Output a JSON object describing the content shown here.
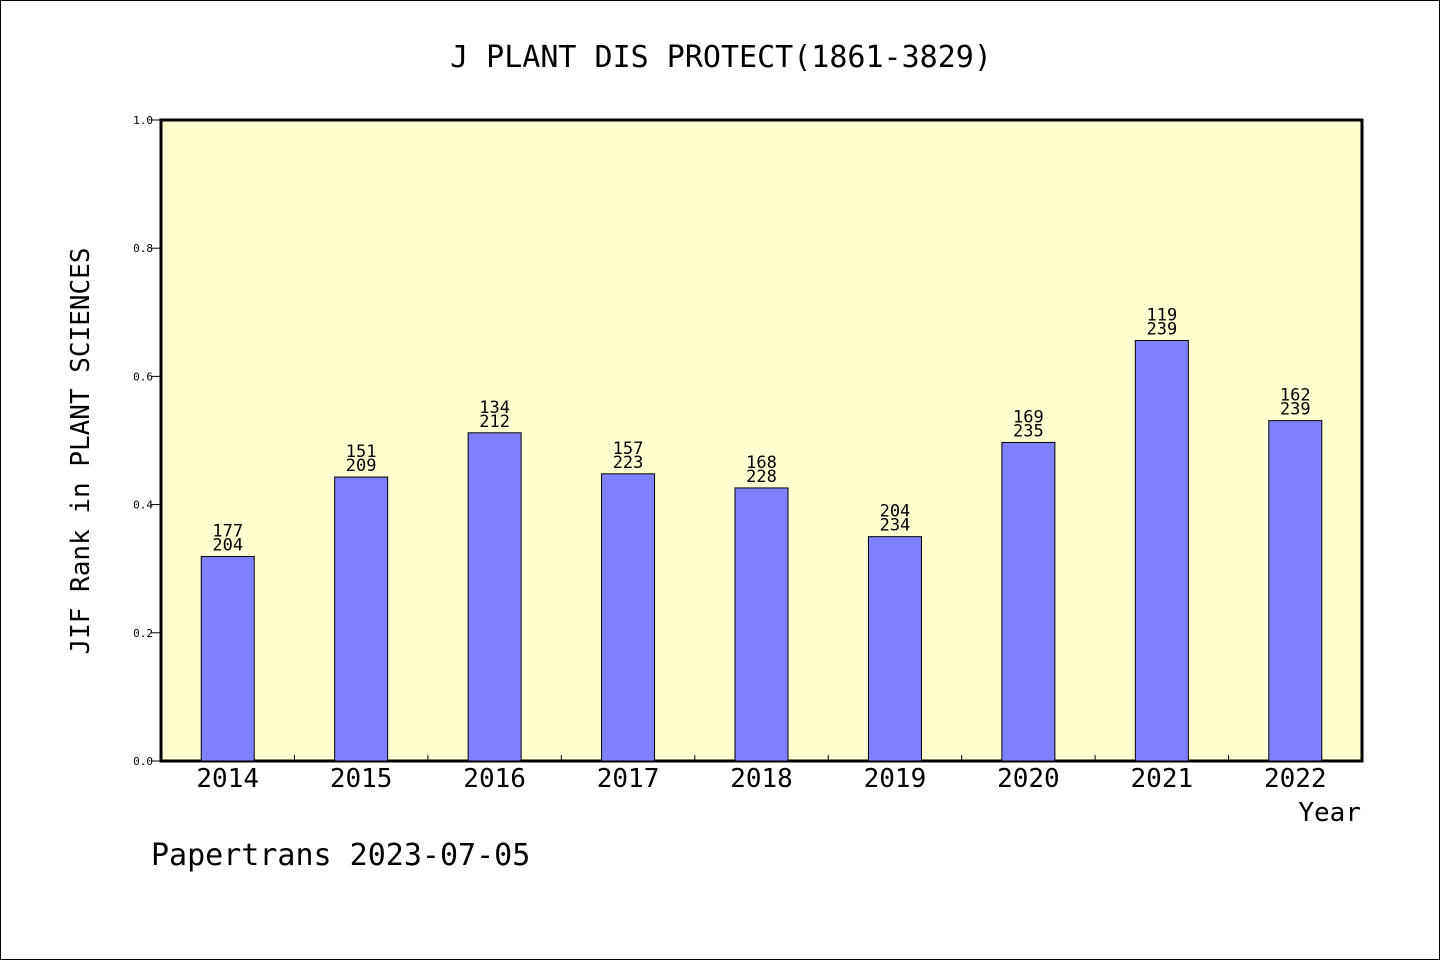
{
  "chart_data": {
    "type": "bar",
    "title": "J PLANT DIS PROTECT(1861-3829)",
    "xlabel": "Year",
    "ylabel": "JIF Rank in PLANT SCIENCES",
    "ylim": [
      0,
      1.0
    ],
    "yticks": [
      "0.0",
      "0.2",
      "0.4",
      "0.6",
      "0.8",
      "1.0"
    ],
    "categories": [
      "2014",
      "2015",
      "2016",
      "2017",
      "2018",
      "2019",
      "2020",
      "2021",
      "2022"
    ],
    "values": [
      0.319,
      0.443,
      0.512,
      0.448,
      0.426,
      0.35,
      0.497,
      0.656,
      0.531
    ],
    "labels_top": [
      "177",
      "151",
      "134",
      "157",
      "168",
      "204",
      "169",
      "119",
      "162"
    ],
    "labels_bottom": [
      "204",
      "209",
      "212",
      "223",
      "228",
      "234",
      "235",
      "239",
      "239"
    ],
    "grid": false,
    "colors": {
      "plot_background": "#ffffd0",
      "bar_fill": "#8080ff",
      "bar_stroke": "#000000"
    }
  },
  "footer": {
    "text": "Papertrans 2023-07-05"
  }
}
